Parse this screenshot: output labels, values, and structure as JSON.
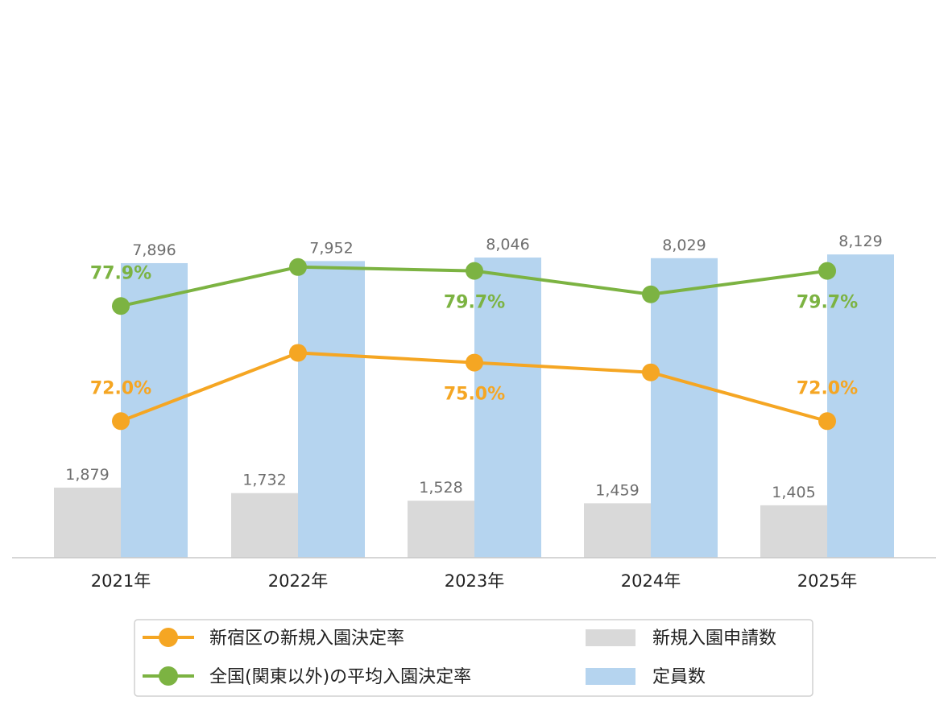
{
  "chart_data": {
    "type": "bar",
    "categories": [
      "2021年",
      "2022年",
      "2023年",
      "2024年",
      "2025年"
    ],
    "bar_series": [
      {
        "name": "新規入園申請数",
        "values": [
          1879,
          1732,
          1528,
          1459,
          1405
        ],
        "labels": [
          "1,879",
          "1,732",
          "1,528",
          "1,459",
          "1,405"
        ],
        "color": "#d9d9d9"
      },
      {
        "name": "定員数",
        "values": [
          7896,
          7952,
          8046,
          8029,
          8129
        ],
        "labels": [
          "7,896",
          "7,952",
          "8,046",
          "8,029",
          "8,129"
        ],
        "color": "#b5d4ef"
      }
    ],
    "line_series": [
      {
        "name": "新宿区の新規入園決定率",
        "values": [
          72.0,
          75.5,
          75.0,
          74.5,
          72.0
        ],
        "labels": [
          "72.0%",
          "",
          "75.0%",
          "",
          "72.0%"
        ],
        "label_pos": [
          "above",
          "",
          "below",
          "",
          "above"
        ],
        "color": "#f5a623"
      },
      {
        "name": "全国(関東以外)の平均入園決定率",
        "values": [
          77.9,
          79.9,
          79.7,
          78.5,
          79.7
        ],
        "labels": [
          "77.9%",
          "",
          "79.7%",
          "",
          "79.7%"
        ],
        "label_pos": [
          "above",
          "",
          "below",
          "",
          "below"
        ],
        "color": "#7cb342"
      }
    ],
    "bar_ylim": [
      0,
      10000
    ],
    "line_ylim": [
      65,
      81.5
    ],
    "legend": "bottom",
    "grid": false
  },
  "legend": {
    "items": [
      {
        "label": "新宿区の新規入園決定率",
        "color": "#f5a623",
        "kind": "line"
      },
      {
        "label": "新規入園申請数",
        "color": "#d9d9d9",
        "kind": "bar"
      },
      {
        "label": "全国(関東以外)の平均入園決定率",
        "color": "#7cb342",
        "kind": "line"
      },
      {
        "label": "定員数",
        "color": "#b5d4ef",
        "kind": "bar"
      }
    ]
  }
}
